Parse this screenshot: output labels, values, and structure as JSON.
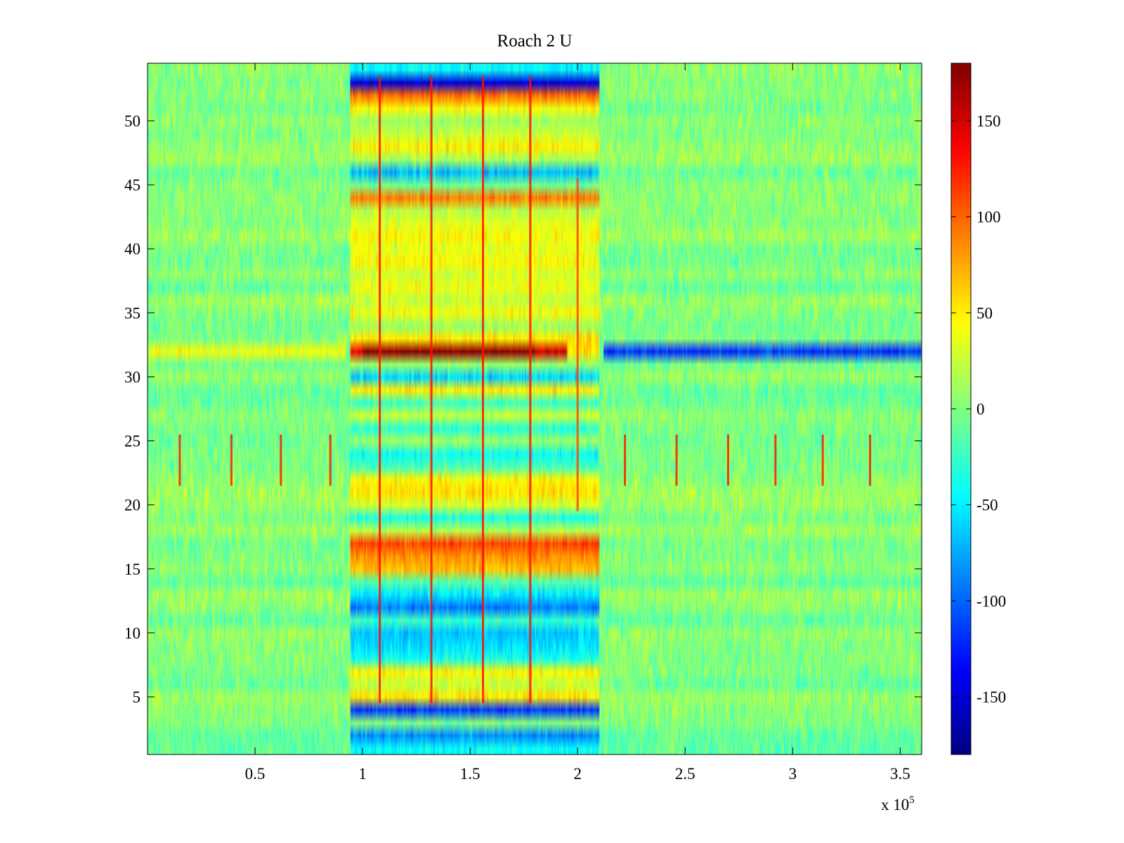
{
  "chart_data": {
    "type": "heatmap",
    "title": "Roach 2 U",
    "xlabel": "",
    "ylabel": "",
    "x_scale_note": {
      "base": "x 10",
      "exponent": "5"
    },
    "xlim": [
      0,
      3.6
    ],
    "ylim": [
      0.5,
      54.5
    ],
    "x_ticks": [
      0.5,
      1,
      1.5,
      2,
      2.5,
      3,
      3.5
    ],
    "x_tick_labels": [
      "0.5",
      "1",
      "1.5",
      "2",
      "2.5",
      "3",
      "3.5"
    ],
    "y_ticks": [
      5,
      10,
      15,
      20,
      25,
      30,
      35,
      40,
      45,
      50
    ],
    "y_tick_labels": [
      "5",
      "10",
      "15",
      "20",
      "25",
      "30",
      "35",
      "40",
      "45",
      "50"
    ],
    "rows": 54,
    "colormap": "jet",
    "clim": [
      -180,
      180
    ],
    "colorbar": {
      "ticks": [
        150,
        100,
        50,
        0,
        -50,
        -100,
        -150
      ],
      "tick_labels": [
        "150",
        "100",
        "50",
        "0",
        "-50",
        "-100",
        "-150"
      ]
    },
    "baseline_value": 0,
    "noise_amplitude": 28,
    "active_region_x": [
      0.94,
      2.1
    ],
    "row_bands": [
      {
        "row": 1,
        "segments": [
          {
            "x": [
              0.94,
              2.1
            ],
            "value": -45
          }
        ]
      },
      {
        "row": 2,
        "segments": [
          {
            "x": [
              0.94,
              2.1
            ],
            "value": -85
          }
        ]
      },
      {
        "row": 4,
        "segments": [
          {
            "x": [
              0.94,
              2.1
            ],
            "value": -115
          }
        ]
      },
      {
        "row": 5,
        "segments": [
          {
            "x": [
              0.94,
              2.1
            ],
            "value": 55
          }
        ]
      },
      {
        "row": 6,
        "segments": [
          {
            "x": [
              0.94,
              2.1
            ],
            "value": 25
          }
        ]
      },
      {
        "row": 7,
        "segments": [
          {
            "x": [
              0.94,
              2.1
            ],
            "value": 48
          }
        ]
      },
      {
        "row": 8,
        "segments": [
          {
            "x": [
              0.94,
              2.1
            ],
            "value": -40
          }
        ]
      },
      {
        "row": 9,
        "segments": [
          {
            "x": [
              0.94,
              2.1
            ],
            "value": -55
          }
        ]
      },
      {
        "row": 10,
        "segments": [
          {
            "x": [
              0.94,
              2.1
            ],
            "value": -65
          }
        ]
      },
      {
        "row": 11,
        "segments": [
          {
            "x": [
              0.94,
              2.1
            ],
            "value": -25
          }
        ]
      },
      {
        "row": 12,
        "segments": [
          {
            "x": [
              0.94,
              2.1
            ],
            "value": -90
          }
        ]
      },
      {
        "row": 13,
        "segments": [
          {
            "x": [
              0.94,
              2.1
            ],
            "value": -55
          }
        ]
      },
      {
        "row": 14,
        "segments": [
          {
            "x": [
              0.94,
              2.1
            ],
            "value": -15
          }
        ]
      },
      {
        "row": 15,
        "segments": [
          {
            "x": [
              0.94,
              2.1
            ],
            "value": 70
          }
        ]
      },
      {
        "row": 16,
        "segments": [
          {
            "x": [
              0.94,
              2.1
            ],
            "value": 85
          }
        ]
      },
      {
        "row": 17,
        "segments": [
          {
            "x": [
              0.94,
              2.1
            ],
            "value": 110
          }
        ]
      },
      {
        "row": 18,
        "segments": [
          {
            "x": [
              0.94,
              2.1
            ],
            "value": 20
          }
        ]
      },
      {
        "row": 19,
        "segments": [
          {
            "x": [
              0.94,
              2.1
            ],
            "value": -35
          }
        ]
      },
      {
        "row": 20,
        "segments": [
          {
            "x": [
              0.94,
              2.1
            ],
            "value": 30
          }
        ]
      },
      {
        "row": 21,
        "segments": [
          {
            "x": [
              0.94,
              2.1
            ],
            "value": 55
          }
        ]
      },
      {
        "row": 22,
        "segments": [
          {
            "x": [
              0.94,
              2.1
            ],
            "value": 48
          }
        ]
      },
      {
        "row": 23,
        "segments": [
          {
            "x": [
              0.94,
              2.1
            ],
            "value": -20
          }
        ]
      },
      {
        "row": 24,
        "segments": [
          {
            "x": [
              0.94,
              2.1
            ],
            "value": -40
          }
        ]
      },
      {
        "row": 25,
        "segments": [
          {
            "x": [
              0.94,
              2.1
            ],
            "value": 10
          }
        ]
      },
      {
        "row": 26,
        "segments": [
          {
            "x": [
              0.94,
              2.1
            ],
            "value": -30
          }
        ]
      },
      {
        "row": 27,
        "segments": [
          {
            "x": [
              0.94,
              2.1
            ],
            "value": 25
          }
        ]
      },
      {
        "row": 28,
        "segments": [
          {
            "x": [
              0.94,
              2.1
            ],
            "value": -25
          }
        ]
      },
      {
        "row": 29,
        "segments": [
          {
            "x": [
              0.94,
              2.1
            ],
            "value": 50
          }
        ]
      },
      {
        "row": 30,
        "segments": [
          {
            "x": [
              0.94,
              2.1
            ],
            "value": -60
          }
        ]
      },
      {
        "row": 31,
        "segments": [
          {
            "x": [
              0.94,
              2.1
            ],
            "value": 10
          }
        ]
      },
      {
        "row": 32,
        "segments": [
          {
            "x": [
              0,
              0.92
            ],
            "value": 42
          },
          {
            "x": [
              0.94,
              1.0
            ],
            "value": 140
          },
          {
            "x": [
              1.0,
              1.8
            ],
            "value": 178
          },
          {
            "x": [
              1.8,
              1.95
            ],
            "value": 150
          },
          {
            "x": [
              1.95,
              2.1
            ],
            "value": 55
          },
          {
            "x": [
              2.12,
              3.6
            ],
            "value": -118
          }
        ]
      },
      {
        "row": 33,
        "segments": [
          {
            "x": [
              0.94,
              2.1
            ],
            "value": 52
          }
        ]
      },
      {
        "row": 34,
        "segments": [
          {
            "x": [
              0.94,
              2.1
            ],
            "value": 10
          }
        ]
      },
      {
        "row": 35,
        "segments": [
          {
            "x": [
              0.94,
              2.1
            ],
            "value": 42
          }
        ]
      },
      {
        "row": 36,
        "segments": [
          {
            "x": [
              0.94,
              2.1
            ],
            "value": 25
          }
        ]
      },
      {
        "row": 37,
        "segments": [
          {
            "x": [
              0.94,
              2.1
            ],
            "value": 40
          }
        ]
      },
      {
        "row": 38,
        "segments": [
          {
            "x": [
              0.94,
              2.1
            ],
            "value": 30
          }
        ]
      },
      {
        "row": 39,
        "segments": [
          {
            "x": [
              0.94,
              2.1
            ],
            "value": 45
          }
        ]
      },
      {
        "row": 40,
        "segments": [
          {
            "x": [
              0.94,
              2.1
            ],
            "value": 35
          }
        ]
      },
      {
        "row": 41,
        "segments": [
          {
            "x": [
              0.94,
              2.1
            ],
            "value": 45
          }
        ]
      },
      {
        "row": 42,
        "segments": [
          {
            "x": [
              0.94,
              2.1
            ],
            "value": 35
          }
        ]
      },
      {
        "row": 43,
        "segments": [
          {
            "x": [
              0.94,
              2.1
            ],
            "value": 20
          }
        ]
      },
      {
        "row": 44,
        "segments": [
          {
            "x": [
              0.94,
              2.1
            ],
            "value": 90
          }
        ]
      },
      {
        "row": 45,
        "segments": [
          {
            "x": [
              0.94,
              2.1
            ],
            "value": -5
          }
        ]
      },
      {
        "row": 46,
        "segments": [
          {
            "x": [
              0.94,
              2.1
            ],
            "value": -70
          }
        ]
      },
      {
        "row": 47,
        "segments": [
          {
            "x": [
              0.94,
              2.1
            ],
            "value": 15
          }
        ]
      },
      {
        "row": 48,
        "segments": [
          {
            "x": [
              0.94,
              2.1
            ],
            "value": 50
          }
        ]
      },
      {
        "row": 49,
        "segments": [
          {
            "x": [
              0.94,
              2.1
            ],
            "value": 25
          }
        ]
      },
      {
        "row": 50,
        "segments": [
          {
            "x": [
              0.94,
              2.1
            ],
            "value": 10
          }
        ]
      },
      {
        "row": 51,
        "segments": [
          {
            "x": [
              0.94,
              2.1
            ],
            "value": 45
          }
        ]
      },
      {
        "row": 52,
        "segments": [
          {
            "x": [
              0.94,
              2.1
            ],
            "value": 95
          }
        ]
      },
      {
        "row": 53,
        "segments": [
          {
            "x": [
              0.94,
              2.1
            ],
            "value": -150
          }
        ]
      },
      {
        "row": 54,
        "segments": [
          {
            "x": [
              0.94,
              2.1
            ],
            "value": -45
          }
        ]
      }
    ],
    "vertical_streaks": [
      {
        "x": 0.15,
        "rows": [
          22,
          25
        ],
        "value": 125
      },
      {
        "x": 0.39,
        "rows": [
          22,
          25
        ],
        "value": 125
      },
      {
        "x": 0.62,
        "rows": [
          22,
          25
        ],
        "value": 125
      },
      {
        "x": 0.85,
        "rows": [
          22,
          25
        ],
        "value": 125
      },
      {
        "x": 2.22,
        "rows": [
          22,
          25
        ],
        "value": 125
      },
      {
        "x": 2.46,
        "rows": [
          22,
          25
        ],
        "value": 125
      },
      {
        "x": 2.7,
        "rows": [
          22,
          25
        ],
        "value": 125
      },
      {
        "x": 2.92,
        "rows": [
          22,
          25
        ],
        "value": 125
      },
      {
        "x": 3.14,
        "rows": [
          22,
          25
        ],
        "value": 125
      },
      {
        "x": 3.36,
        "rows": [
          22,
          25
        ],
        "value": 125
      },
      {
        "x": 1.08,
        "rows": [
          5,
          53
        ],
        "value": 130
      },
      {
        "x": 1.32,
        "rows": [
          5,
          53
        ],
        "value": 130
      },
      {
        "x": 1.56,
        "rows": [
          5,
          53
        ],
        "value": 130
      },
      {
        "x": 1.78,
        "rows": [
          5,
          53
        ],
        "value": 130
      },
      {
        "x": 2.0,
        "rows": [
          20,
          45
        ],
        "value": 110
      }
    ]
  }
}
